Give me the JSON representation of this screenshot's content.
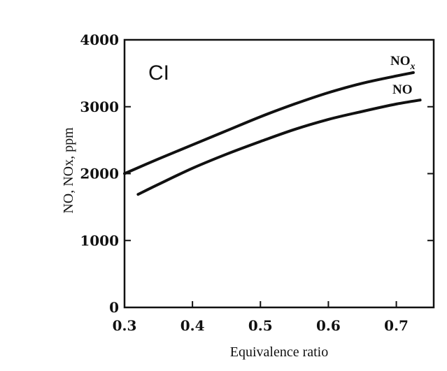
{
  "chart_data": {
    "type": "line",
    "panel_label": "CI",
    "xlabel": "Equivalence ratio",
    "ylabel": "NO, NOx, ppm",
    "xlim": [
      0.3,
      0.755
    ],
    "ylim": [
      0,
      4000
    ],
    "x_ticks": [
      "0.3",
      "0.4",
      "0.5",
      "0.6",
      "0.7"
    ],
    "y_ticks": [
      "0",
      "1000",
      "2000",
      "3000",
      "4000"
    ],
    "grid": false,
    "series": [
      {
        "name": "NOx",
        "label_main": "NO",
        "label_sub": "x",
        "x": [
          0.3,
          0.35,
          0.4,
          0.45,
          0.5,
          0.55,
          0.6,
          0.65,
          0.7,
          0.725
        ],
        "y": [
          2000,
          2220,
          2430,
          2640,
          2850,
          3040,
          3210,
          3350,
          3460,
          3510
        ]
      },
      {
        "name": "NO",
        "label_main": "NO",
        "label_sub": "",
        "x": [
          0.32,
          0.35,
          0.4,
          0.45,
          0.5,
          0.55,
          0.6,
          0.65,
          0.7,
          0.735
        ],
        "y": [
          1690,
          1840,
          2080,
          2290,
          2480,
          2660,
          2810,
          2930,
          3040,
          3100
        ]
      }
    ]
  }
}
